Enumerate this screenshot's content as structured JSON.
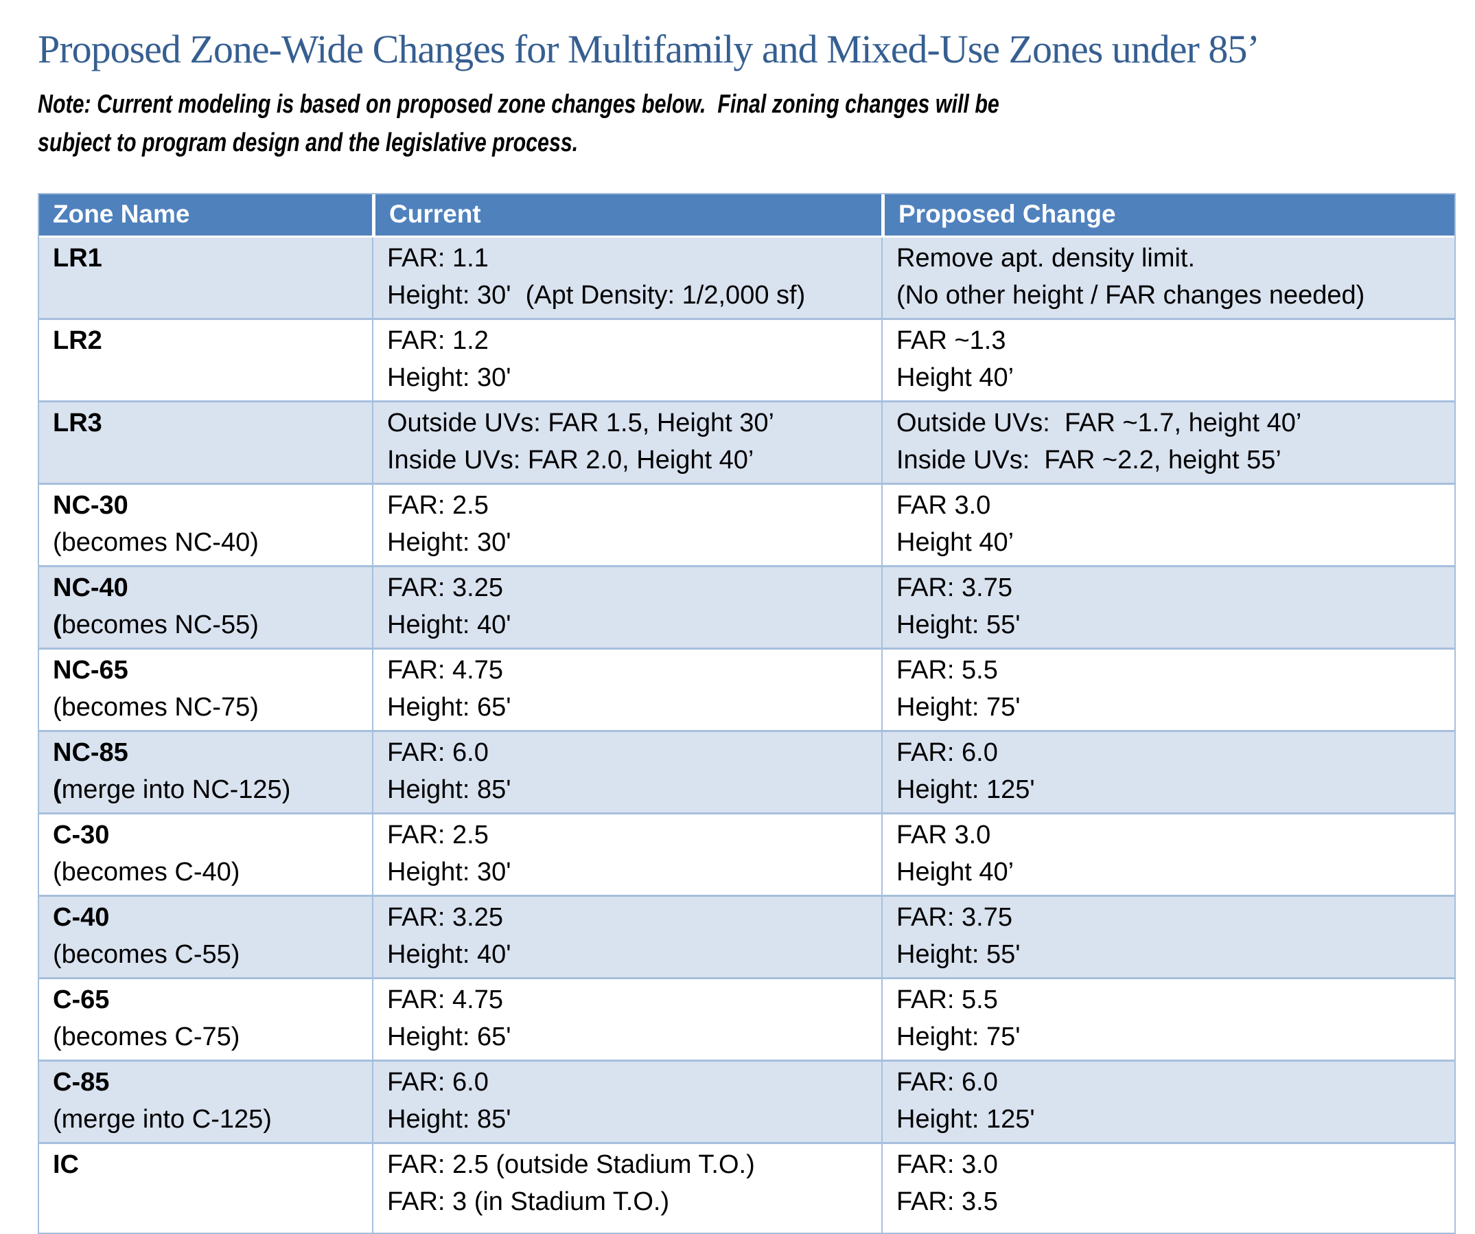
{
  "page": {
    "title": "Proposed Zone-Wide Changes for Multifamily and Mixed-Use Zones under 85’",
    "note_lines": [
      "Note: Current modeling is based on proposed zone changes below.  Final zoning changes will be",
      "subject to program design and the legislative process."
    ]
  },
  "table": {
    "headers": [
      "Zone Name",
      "Current",
      "Proposed Change"
    ],
    "rows": [
      {
        "zone": "LR1",
        "zone_sub": "",
        "zone_sub_bold_paren": false,
        "shaded": true,
        "tall": false,
        "current": [
          "FAR: 1.1",
          "Height: 30'  (Apt Density: 1/2,000 sf)"
        ],
        "proposed": [
          "Remove apt. density limit.",
          "(No other height / FAR changes needed)"
        ]
      },
      {
        "zone": "LR2",
        "zone_sub": "",
        "zone_sub_bold_paren": false,
        "shaded": false,
        "tall": false,
        "current": [
          "FAR: 1.2",
          "Height: 30'"
        ],
        "proposed": [
          "FAR ~1.3",
          "Height 40’"
        ]
      },
      {
        "zone": "LR3",
        "zone_sub": "",
        "zone_sub_bold_paren": false,
        "shaded": true,
        "tall": false,
        "current": [
          "Outside UVs: FAR 1.5, Height 30’",
          "Inside UVs: FAR 2.0, Height 40’"
        ],
        "proposed": [
          "Outside UVs:  FAR ~1.7, height 40’",
          "Inside UVs:  FAR ~2.2, height 55’"
        ]
      },
      {
        "zone": "NC-30",
        "zone_sub": "(becomes NC-40)",
        "zone_sub_bold_paren": false,
        "shaded": false,
        "tall": false,
        "current": [
          "FAR: 2.5",
          "Height: 30'"
        ],
        "proposed": [
          "FAR 3.0",
          "Height 40’"
        ]
      },
      {
        "zone": "NC-40",
        "zone_sub": "(becomes NC-55)",
        "zone_sub_bold_paren": true,
        "shaded": true,
        "tall": false,
        "current": [
          "FAR: 3.25",
          "Height: 40'"
        ],
        "proposed": [
          "FAR: 3.75",
          "Height: 55'"
        ]
      },
      {
        "zone": "NC-65",
        "zone_sub": "(becomes NC-75)",
        "zone_sub_bold_paren": false,
        "shaded": false,
        "tall": false,
        "current": [
          "FAR: 4.75",
          "Height: 65'"
        ],
        "proposed": [
          "FAR: 5.5",
          "Height: 75'"
        ]
      },
      {
        "zone": "NC-85",
        "zone_sub": "(merge into NC-125)",
        "zone_sub_bold_paren": true,
        "shaded": true,
        "tall": false,
        "current": [
          "FAR: 6.0",
          "Height: 85'"
        ],
        "proposed": [
          "FAR: 6.0",
          "Height: 125'"
        ]
      },
      {
        "zone": "C-30",
        "zone_sub": "(becomes C-40)",
        "zone_sub_bold_paren": false,
        "shaded": false,
        "tall": false,
        "current": [
          "FAR: 2.5",
          "Height: 30'"
        ],
        "proposed": [
          "FAR 3.0",
          "Height 40’"
        ]
      },
      {
        "zone": "C-40",
        "zone_sub": "(becomes C-55)",
        "zone_sub_bold_paren": false,
        "shaded": true,
        "tall": false,
        "current": [
          "FAR: 3.25",
          "Height: 40'"
        ],
        "proposed": [
          "FAR: 3.75",
          "Height: 55'"
        ]
      },
      {
        "zone": "C-65",
        "zone_sub": "(becomes C-75)",
        "zone_sub_bold_paren": false,
        "shaded": false,
        "tall": false,
        "current": [
          "FAR: 4.75",
          "Height: 65'"
        ],
        "proposed": [
          "FAR: 5.5",
          "Height: 75'"
        ]
      },
      {
        "zone": "C-85",
        "zone_sub": "(merge into C-125)",
        "zone_sub_bold_paren": false,
        "shaded": true,
        "tall": false,
        "current": [
          "FAR: 6.0",
          "Height: 85'"
        ],
        "proposed": [
          "FAR: 6.0",
          "Height: 125'"
        ]
      },
      {
        "zone": "IC",
        "zone_sub": "",
        "zone_sub_bold_paren": false,
        "shaded": false,
        "tall": true,
        "current": [
          "FAR: 2.5 (outside Stadium T.O.)",
          "FAR: 3 (in Stadium T.O.)"
        ],
        "proposed": [
          "FAR: 3.0",
          "FAR: 3.5"
        ]
      }
    ]
  },
  "colors": {
    "title_text": "#365F91",
    "header_bg": "#4F81BD",
    "header_text": "#FFFFFF",
    "band_bg": "#D9E2EF",
    "border": "#A6BFDD"
  }
}
